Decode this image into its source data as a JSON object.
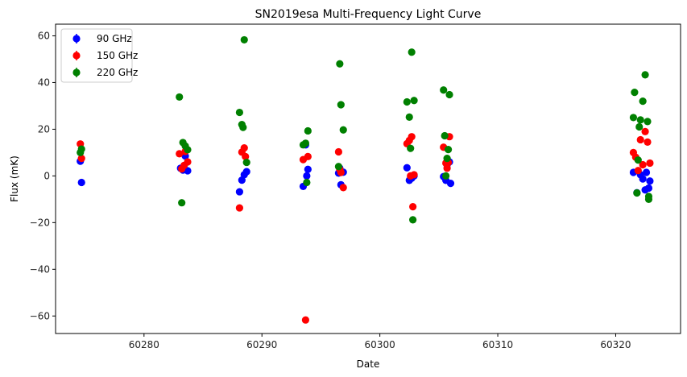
{
  "chart_data": {
    "type": "scatter",
    "title": "SN2019esa Multi-Frequency Light Curve",
    "xlabel": "Date",
    "ylabel": "Flux (mK)",
    "xlim": [
      60272.5,
      60325.5
    ],
    "ylim": [
      -67.5,
      65
    ],
    "xticks": [
      60280,
      60290,
      60300,
      60310,
      60320
    ],
    "yticks": [
      -60,
      -40,
      -20,
      0,
      20,
      40,
      60
    ],
    "grid": false,
    "legend_position": "top-left",
    "series": [
      {
        "name": "90 GHz",
        "color": "#0000ff",
        "points": [
          [
            60274.6,
            6.3
          ],
          [
            60274.7,
            -2.8
          ],
          [
            60283.1,
            3.3
          ],
          [
            60283.3,
            2.5
          ],
          [
            60283.5,
            8.5
          ],
          [
            60283.7,
            2.2
          ],
          [
            60288.1,
            -6.8
          ],
          [
            60288.3,
            -1.8
          ],
          [
            60288.5,
            0.5
          ],
          [
            60288.7,
            1.8
          ],
          [
            60293.5,
            -4.5
          ],
          [
            60293.8,
            0.0
          ],
          [
            60293.9,
            2.8
          ],
          [
            60293.7,
            13.3
          ],
          [
            60296.5,
            1.2
          ],
          [
            60296.7,
            -3.8
          ],
          [
            60296.9,
            1.6
          ],
          [
            60296.6,
            3.3
          ],
          [
            60302.3,
            3.5
          ],
          [
            60302.5,
            -1.9
          ],
          [
            60302.7,
            -1.0
          ],
          [
            60302.9,
            0.0
          ],
          [
            60305.4,
            -0.3
          ],
          [
            60305.6,
            -1.9
          ],
          [
            60305.7,
            4.8
          ],
          [
            60305.9,
            6.0
          ],
          [
            60306.0,
            -3.2
          ],
          [
            60321.5,
            1.5
          ],
          [
            60321.8,
            -7.2
          ],
          [
            60322.1,
            0.5
          ],
          [
            60322.3,
            -1.3
          ],
          [
            60322.5,
            -6.0
          ],
          [
            60322.6,
            1.5
          ],
          [
            60322.8,
            -5.2
          ],
          [
            60322.9,
            -2.2
          ]
        ]
      },
      {
        "name": "150 GHz",
        "color": "#ff0000",
        "points": [
          [
            60274.6,
            13.7
          ],
          [
            60274.7,
            7.5
          ],
          [
            60283.0,
            9.5
          ],
          [
            60283.2,
            3.0
          ],
          [
            60283.4,
            4.5
          ],
          [
            60283.7,
            6.0
          ],
          [
            60283.5,
            10.5
          ],
          [
            60288.1,
            -13.7
          ],
          [
            60288.3,
            10.2
          ],
          [
            60288.5,
            12.0
          ],
          [
            60288.6,
            8.3
          ],
          [
            60293.5,
            7.0
          ],
          [
            60293.7,
            -61.7
          ],
          [
            60293.9,
            8.3
          ],
          [
            60296.5,
            10.3
          ],
          [
            60296.7,
            1.5
          ],
          [
            60296.9,
            -5.0
          ],
          [
            60296.6,
            2.8
          ],
          [
            60302.3,
            13.8
          ],
          [
            60302.5,
            15.2
          ],
          [
            60302.7,
            16.8
          ],
          [
            60302.9,
            0.5
          ],
          [
            60302.8,
            -13.2
          ],
          [
            60302.6,
            0.0
          ],
          [
            60305.4,
            12.3
          ],
          [
            60305.6,
            5.5
          ],
          [
            60305.7,
            3.3
          ],
          [
            60305.9,
            16.8
          ],
          [
            60305.8,
            5.7
          ],
          [
            60321.5,
            10.0
          ],
          [
            60321.7,
            8.0
          ],
          [
            60321.9,
            2.3
          ],
          [
            60322.1,
            15.5
          ],
          [
            60322.3,
            4.8
          ],
          [
            60322.5,
            19.0
          ],
          [
            60322.7,
            14.5
          ],
          [
            60322.9,
            5.5
          ]
        ]
      },
      {
        "name": "220 GHz",
        "color": "#008000",
        "points": [
          [
            60274.6,
            10.0
          ],
          [
            60274.7,
            11.5
          ],
          [
            60283.0,
            33.8
          ],
          [
            60283.2,
            -11.5
          ],
          [
            60283.3,
            14.3
          ],
          [
            60283.5,
            12.8
          ],
          [
            60283.7,
            11.2
          ],
          [
            60288.1,
            27.2
          ],
          [
            60288.3,
            22.0
          ],
          [
            60288.5,
            58.3
          ],
          [
            60288.4,
            20.8
          ],
          [
            60288.7,
            5.8
          ],
          [
            60293.5,
            13.3
          ],
          [
            60293.7,
            14.0
          ],
          [
            60293.9,
            19.3
          ],
          [
            60293.8,
            -2.8
          ],
          [
            60296.5,
            4.0
          ],
          [
            60296.6,
            48.0
          ],
          [
            60296.7,
            30.5
          ],
          [
            60296.9,
            19.7
          ],
          [
            60302.3,
            31.7
          ],
          [
            60302.5,
            25.2
          ],
          [
            60302.6,
            11.8
          ],
          [
            60302.7,
            53.0
          ],
          [
            60302.8,
            -18.8
          ],
          [
            60302.9,
            32.3
          ],
          [
            60305.4,
            36.8
          ],
          [
            60305.5,
            17.2
          ],
          [
            60305.7,
            7.5
          ],
          [
            60305.8,
            11.3
          ],
          [
            60305.9,
            34.8
          ],
          [
            60305.6,
            0.0
          ],
          [
            60321.5,
            25.0
          ],
          [
            60321.6,
            35.8
          ],
          [
            60321.8,
            -7.3
          ],
          [
            60321.9,
            6.8
          ],
          [
            60322.0,
            21.0
          ],
          [
            60322.1,
            24.0
          ],
          [
            60322.3,
            32.0
          ],
          [
            60322.5,
            43.3
          ],
          [
            60322.7,
            23.3
          ],
          [
            60322.8,
            -8.8
          ],
          [
            60322.8,
            -10.0
          ]
        ]
      }
    ]
  }
}
